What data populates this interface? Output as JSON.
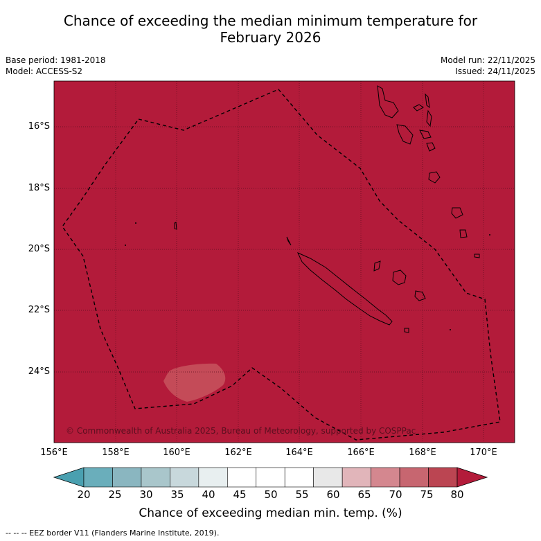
{
  "title": {
    "line1": "Chance of exceeding the median minimum temperature for",
    "line2": "February 2026"
  },
  "meta": {
    "base_period": "Base period: 1981-2018",
    "model": "Model: ACCESS-S2",
    "model_run": "Model run: 22/11/2025",
    "issued": "Issued: 24/11/2025"
  },
  "map": {
    "lat_labels": [
      "16°S",
      "18°S",
      "20°S",
      "22°S",
      "24°S"
    ],
    "lon_labels": [
      "156°E",
      "158°E",
      "160°E",
      "162°E",
      "164°E",
      "166°E",
      "168°E",
      "170°E"
    ],
    "copyright": "© Commonwealth of Australia 2025, Bureau of Meteorology, supported by COSPPac",
    "background_color": "#b31b3a",
    "patch_color": "#c44b58"
  },
  "colorbar": {
    "ticks": [
      "20",
      "25",
      "30",
      "35",
      "40",
      "45",
      "50",
      "55",
      "60",
      "65",
      "70",
      "75",
      "80"
    ],
    "low_extend_color": "#4aa0b0",
    "high_extend_color": "#b31b3a",
    "segment_colors": [
      "#6aaebb",
      "#8ab6c0",
      "#a9c6cb",
      "#c8d8dc",
      "#e8eff0",
      "#ffffff",
      "#ffffff",
      "#ffffff",
      "#e8e8e8",
      "#e1b5ba",
      "#d4878f",
      "#c76670",
      "#bb4552"
    ],
    "label": "Chance of exceeding median min. temp. (%)"
  },
  "footer": {
    "legend_text": "--  --  -- EEZ border V11 (Flanders Marine Institute, 2019)."
  }
}
